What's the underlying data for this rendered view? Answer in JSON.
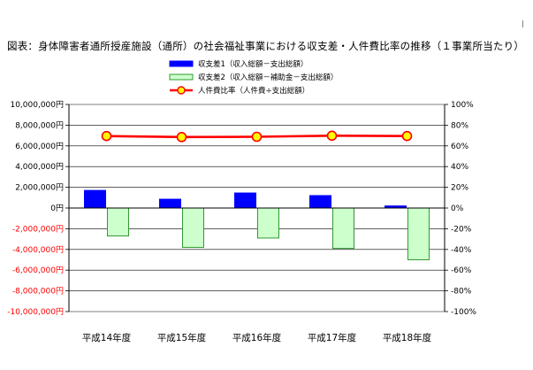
{
  "page": {
    "mark": "|",
    "title": "図表：身体障害者通所授産施設（通所）の社会福祉事業における収支差・人件費比率の推移（１事業所当たり）"
  },
  "chart_data": {
    "type": "bar",
    "categories": [
      "平成14年度",
      "平成15年度",
      "平成16年度",
      "平成17年度",
      "平成18年度"
    ],
    "series": [
      {
        "name": "収支差1（収入総額－支出総額）",
        "kind": "bar",
        "axis": "left",
        "color": "#0000ff",
        "values": [
          1700000,
          850000,
          1450000,
          1200000,
          200000
        ]
      },
      {
        "name": "収支差2（収入総額－補助金－支出総額）",
        "kind": "bar",
        "axis": "left",
        "color": "#ccffcc",
        "stroke": "#339933",
        "values": [
          -2700000,
          -3800000,
          -2900000,
          -3900000,
          -5000000
        ]
      },
      {
        "name": "人件費比率（人件費÷支出総額）",
        "kind": "line",
        "axis": "right",
        "color": "#ff0000",
        "marker_fill": "#ffff00",
        "values": [
          69.5,
          68.5,
          68.8,
          69.8,
          69.5
        ]
      }
    ],
    "y_left": {
      "ylim": [
        -10000000,
        10000000
      ],
      "ticks": [
        10000000,
        8000000,
        6000000,
        4000000,
        2000000,
        0,
        -2000000,
        -4000000,
        -6000000,
        -8000000,
        -10000000
      ],
      "tick_labels": [
        "10,000,000円",
        "8,000,000円",
        "6,000,000円",
        "4,000,000円",
        "2,000,000円",
        "0円",
        "-2,000,000円",
        "-4,000,000円",
        "-6,000,000円",
        "-8,000,000円",
        "-10,000,000円"
      ],
      "negative_label_color": "#ff0000"
    },
    "y_right": {
      "ylim": [
        -100,
        100
      ],
      "ticks": [
        100,
        80,
        60,
        40,
        20,
        0,
        -20,
        -40,
        -60,
        -80,
        -100
      ],
      "tick_labels": [
        "100%",
        "80%",
        "60%",
        "40%",
        "20%",
        "0%",
        "-20%",
        "-40%",
        "-60%",
        "-80%",
        "-100%"
      ]
    },
    "grid": true,
    "legend": "top-center"
  }
}
